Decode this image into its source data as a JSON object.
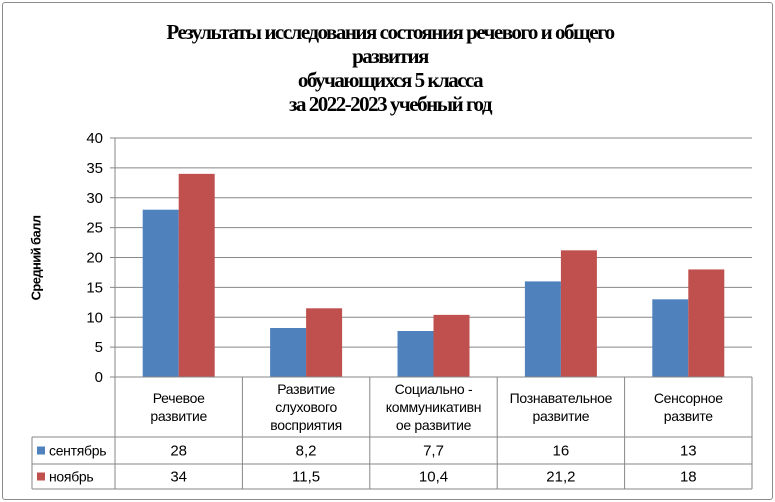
{
  "chart_data": {
    "type": "bar",
    "title_lines": [
      "Результаты исследования состояния речевого и общего",
      "развития",
      "обучающихся 5 класса",
      "за 2022-2023 учебный год"
    ],
    "ylabel": "Средний балл",
    "xlabel": "",
    "ylim": [
      0,
      40
    ],
    "yticks": [
      "0",
      "5",
      "10",
      "15",
      "20",
      "25",
      "30",
      "35",
      "40"
    ],
    "grid": true,
    "legend_placement": "data-table",
    "categories": [
      [
        "Речевое",
        "развитие"
      ],
      [
        "Развитие",
        "слухового",
        "восприятия"
      ],
      [
        "Социально -",
        "коммуникативн",
        "ое развитие"
      ],
      [
        "Познавательное",
        "развитие"
      ],
      [
        "Сенсорное",
        "развите"
      ]
    ],
    "series": [
      {
        "name": "сентябрь",
        "color": "#4f81bd",
        "values": [
          28,
          8.2,
          7.7,
          16,
          13
        ],
        "labels": [
          "28",
          "8,2",
          "7,7",
          "16",
          "13"
        ]
      },
      {
        "name": "ноябрь",
        "color": "#c0504d",
        "values": [
          34,
          11.5,
          10.4,
          21.2,
          18
        ],
        "labels": [
          "34",
          "11,5",
          "10,4",
          "21,2",
          "18"
        ]
      }
    ]
  }
}
